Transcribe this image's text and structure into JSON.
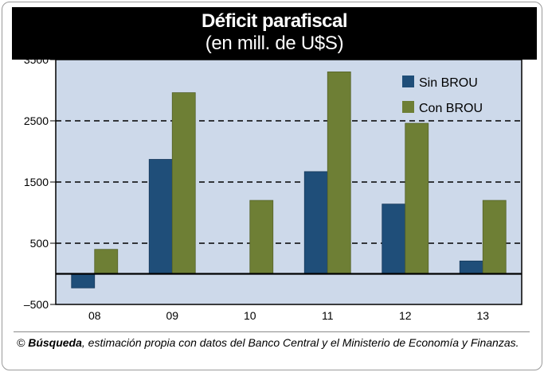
{
  "title": "Déficit parafiscal",
  "subtitle": "(en mill. de U$S)",
  "source": {
    "copyright": "©",
    "publication": "Búsqueda",
    "text": ", estimación propia con datos del Banco Central y el Ministerio de Economía y Finanzas."
  },
  "colors": {
    "plot_background": "#cdd9ea",
    "sin_brou": "#1f4e79",
    "con_brou": "#6e7f35"
  },
  "chart_data": {
    "type": "bar",
    "title": "Déficit parafiscal",
    "subtitle": "(en mill. de U$S)",
    "categories": [
      "08",
      "09",
      "10",
      "11",
      "12",
      "13"
    ],
    "series": [
      {
        "name": "Sin BROU",
        "values": [
          -230,
          1870,
          null,
          1670,
          1140,
          210
        ]
      },
      {
        "name": "Con BROU",
        "values": [
          400,
          2960,
          1200,
          3300,
          2460,
          1200
        ]
      }
    ],
    "yticks": [
      3500,
      2500,
      1500,
      500,
      -500
    ],
    "ylim": [
      -500,
      3500
    ],
    "grid": "dashed horizontal",
    "legend": "top-right",
    "xlabel": "",
    "ylabel": ""
  }
}
